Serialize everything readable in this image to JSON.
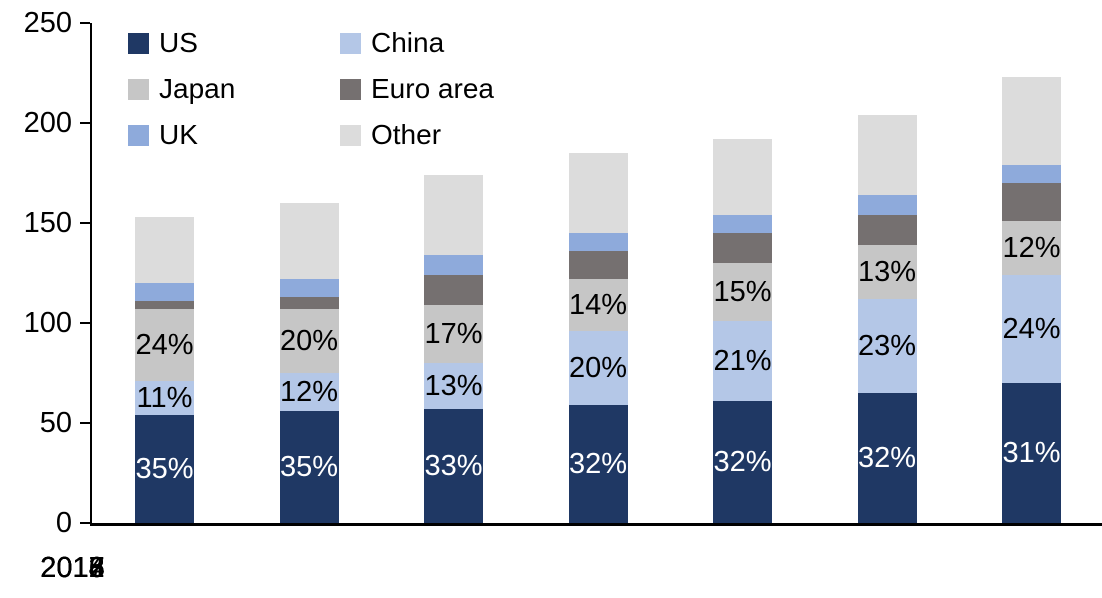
{
  "chart_data": {
    "type": "bar",
    "stacked": true,
    "title": "",
    "xlabel": "",
    "ylabel": "",
    "categories": [
      "2012",
      "2013",
      "2014",
      "2015",
      "2016",
      "2017",
      "2018"
    ],
    "series": [
      {
        "name": "US",
        "color": "#1F3864",
        "values": [
          54,
          56,
          57,
          59,
          61,
          65,
          70
        ],
        "labels": [
          "35%",
          "35%",
          "33%",
          "32%",
          "32%",
          "32%",
          "31%"
        ],
        "label_color": "#FFFFFF"
      },
      {
        "name": "China",
        "color": "#B4C7E7",
        "values": [
          17,
          19,
          23,
          37,
          40,
          47,
          54
        ],
        "labels": [
          "11%",
          "12%",
          "13%",
          "20%",
          "21%",
          "23%",
          "24%"
        ],
        "label_color": "#000000"
      },
      {
        "name": "Japan",
        "color": "#C6C6C6",
        "values": [
          36,
          32,
          29,
          26,
          29,
          27,
          27
        ],
        "labels": [
          "24%",
          "20%",
          "17%",
          "14%",
          "15%",
          "13%",
          "12%"
        ],
        "label_color": "#000000"
      },
      {
        "name": "Euro area",
        "color": "#757070",
        "values": [
          4,
          6,
          15,
          14,
          15,
          15,
          19
        ]
      },
      {
        "name": "UK",
        "color": "#8EAADB",
        "values": [
          9,
          9,
          10,
          9,
          9,
          10,
          9
        ]
      },
      {
        "name": "Other",
        "color": "#DCDCDC",
        "values": [
          33,
          38,
          40,
          40,
          38,
          40,
          44
        ]
      }
    ],
    "bar_totals": [
      153,
      160,
      174,
      185,
      192,
      204,
      223
    ],
    "ylim": [
      0,
      250
    ],
    "y_ticks": [
      "0",
      "50",
      "100",
      "150",
      "200",
      "250"
    ],
    "grid": false,
    "legend_position": "top-left",
    "axis_color": "#000000",
    "background_color": "#FFFFFF"
  }
}
